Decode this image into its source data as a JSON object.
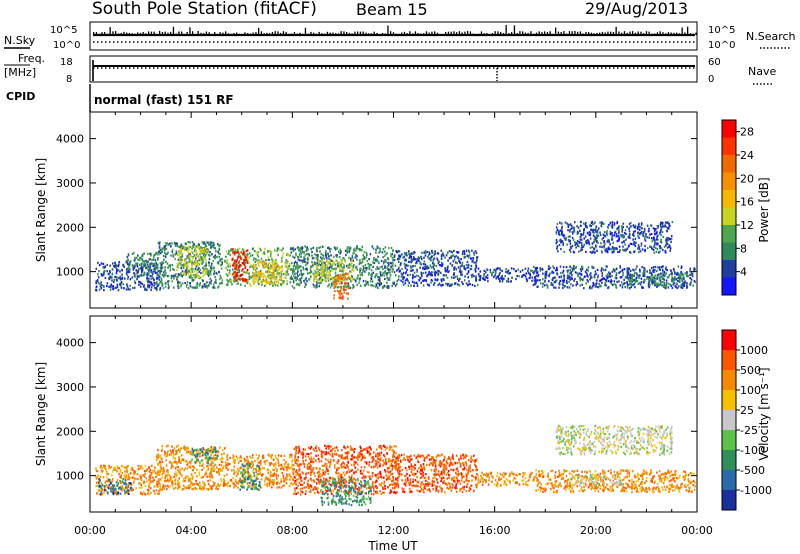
{
  "header": {
    "station": "South Pole Station (fitACF)",
    "beam": "Beam 15",
    "date": "29/Aug/2013"
  },
  "status_panels": {
    "nsky_label": "N.Sky",
    "nsky_tick_top": "10^5",
    "nsky_tick_bottom": "10^0",
    "nsearch_label": "N.Search",
    "nsearch_tick_top": "10^5",
    "nsearch_tick_bottom": "10^0",
    "freq_label_line1": "Freq.",
    "freq_label_line2": "[MHz]",
    "freq_tick_top": "18",
    "freq_tick_bottom": "8",
    "nave_label": "Nave",
    "nave_tick_top": "60",
    "nave_tick_bottom": "0",
    "cpid_label": "CPID",
    "cpid_value": "normal (fast) 151 RF"
  },
  "axes": {
    "ylabel": "Slant Range [km]",
    "xlabel": "Time UT"
  },
  "colorbars": {
    "power": {
      "label": "Power [dB]",
      "tick_labels": [
        "4",
        "8",
        "12",
        "16",
        "20",
        "24",
        "28"
      ],
      "colors": [
        "#1414ff",
        "#1f3f9e",
        "#2f8a5a",
        "#4fa64f",
        "#c8d41e",
        "#f5b800",
        "#f59000",
        "#f06a00",
        "#ff3300",
        "#ff0000"
      ]
    },
    "velocity": {
      "label": "Velocity [m s⁻¹]",
      "tick_labels": [
        "1000",
        "500",
        "100",
        "25",
        "-25",
        "-100",
        "-500",
        "-1000"
      ],
      "colors": [
        "#1a2f9e",
        "#2a6aa8",
        "#2f8f5a",
        "#5cc24a",
        "#c8c8c8",
        "#f5c000",
        "#f58a00",
        "#ff5500",
        "#ff0000"
      ]
    }
  },
  "chart_data": [
    {
      "type": "heatmap",
      "title": "Power",
      "x_range_hours": [
        0,
        24
      ],
      "x_tick_labels": [
        "00:00",
        "04:00",
        "08:00",
        "12:00",
        "16:00",
        "20:00",
        "00:00"
      ],
      "ylim": [
        180,
        4600
      ],
      "y_tick_labels": [
        "1000",
        "2000",
        "3000",
        "4000"
      ],
      "scatter_bands": [
        {
          "t0": 0.2,
          "t1": 2.8,
          "r0": 600,
          "r1": 1250,
          "level": 1
        },
        {
          "t0": 1.4,
          "t1": 2.6,
          "r0": 1000,
          "r1": 1450,
          "level": 2
        },
        {
          "t0": 2.6,
          "t1": 5.2,
          "r0": 650,
          "r1": 1700,
          "level": 2
        },
        {
          "t0": 3.4,
          "t1": 4.6,
          "r0": 900,
          "r1": 1600,
          "level": 4
        },
        {
          "t0": 5.3,
          "t1": 7.9,
          "r0": 700,
          "r1": 1550,
          "level": 3
        },
        {
          "t0": 5.6,
          "t1": 6.2,
          "r0": 800,
          "r1": 1550,
          "level": 9
        },
        {
          "t0": 6.4,
          "t1": 7.6,
          "r0": 750,
          "r1": 1250,
          "level": 5
        },
        {
          "t0": 7.9,
          "t1": 12.0,
          "r0": 650,
          "r1": 1600,
          "level": 2
        },
        {
          "t0": 8.8,
          "t1": 10.4,
          "r0": 800,
          "r1": 1300,
          "level": 4
        },
        {
          "t0": 9.6,
          "t1": 10.2,
          "r0": 400,
          "r1": 1000,
          "level": 7
        },
        {
          "t0": 12.0,
          "t1": 15.3,
          "r0": 700,
          "r1": 1500,
          "level": 1
        },
        {
          "t0": 15.3,
          "t1": 17.5,
          "r0": 800,
          "r1": 1100,
          "level": 1
        },
        {
          "t0": 17.5,
          "t1": 23.9,
          "r0": 650,
          "r1": 1150,
          "level": 1
        },
        {
          "t0": 18.4,
          "t1": 23.0,
          "r0": 1450,
          "r1": 2150,
          "level": 1
        },
        {
          "t0": 21.2,
          "t1": 23.6,
          "r0": 700,
          "r1": 1000,
          "level": 2
        }
      ]
    },
    {
      "type": "heatmap",
      "title": "Velocity",
      "x_range_hours": [
        0,
        24
      ],
      "x_tick_labels": [
        "00:00",
        "04:00",
        "08:00",
        "12:00",
        "16:00",
        "20:00",
        "00:00"
      ],
      "ylim": [
        180,
        4600
      ],
      "y_tick_labels": [
        "1000",
        "2000",
        "3000",
        "4000"
      ],
      "scatter_bands": [
        {
          "t0": 0.2,
          "t1": 2.8,
          "r0": 600,
          "r1": 1250,
          "level": 6
        },
        {
          "t0": 0.3,
          "t1": 1.6,
          "r0": 600,
          "r1": 950,
          "level": 1
        },
        {
          "t0": 2.6,
          "t1": 5.3,
          "r0": 700,
          "r1": 1700,
          "level": 6
        },
        {
          "t0": 4.0,
          "t1": 5.0,
          "r0": 1300,
          "r1": 1650,
          "level": 2
        },
        {
          "t0": 5.3,
          "t1": 8.0,
          "r0": 750,
          "r1": 1500,
          "level": 6
        },
        {
          "t0": 5.9,
          "t1": 6.7,
          "r0": 700,
          "r1": 1300,
          "level": 2
        },
        {
          "t0": 8.0,
          "t1": 12.2,
          "r0": 600,
          "r1": 1700,
          "level": 7
        },
        {
          "t0": 9.1,
          "t1": 11.1,
          "r0": 350,
          "r1": 950,
          "level": 2
        },
        {
          "t0": 12.0,
          "t1": 15.3,
          "r0": 650,
          "r1": 1500,
          "level": 7
        },
        {
          "t0": 15.3,
          "t1": 17.6,
          "r0": 800,
          "r1": 1100,
          "level": 6
        },
        {
          "t0": 17.6,
          "t1": 23.9,
          "r0": 650,
          "r1": 1150,
          "level": 6
        },
        {
          "t0": 19.0,
          "t1": 21.0,
          "r0": 800,
          "r1": 1050,
          "level": 4
        },
        {
          "t0": 18.4,
          "t1": 23.0,
          "r0": 1500,
          "r1": 2150,
          "level": 4
        }
      ]
    }
  ]
}
